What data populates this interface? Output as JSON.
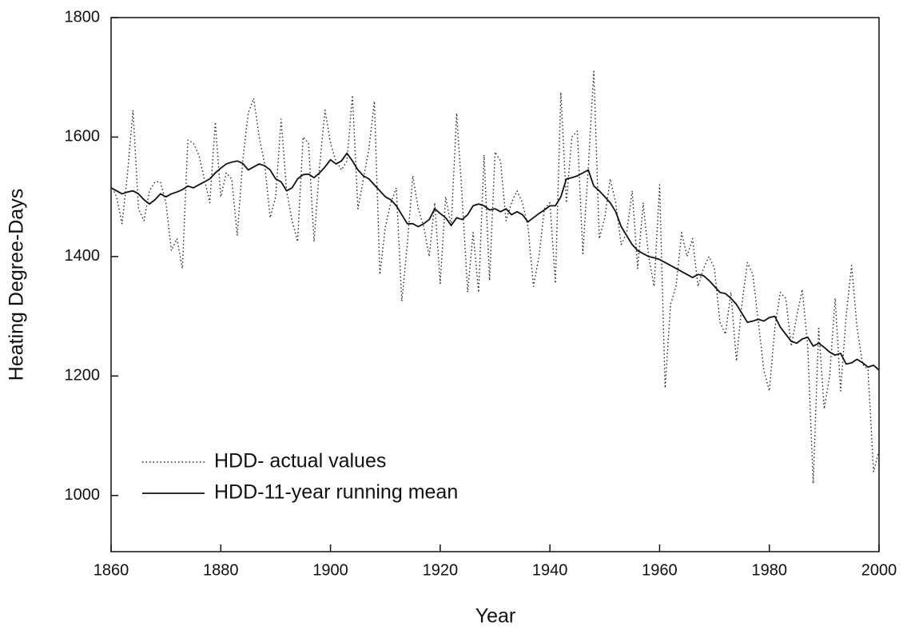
{
  "chart_data": {
    "type": "line",
    "xlabel": "Year",
    "ylabel": "Heating Degree-Days",
    "xlim": [
      1860,
      2000
    ],
    "xticks": [
      1860,
      1880,
      1900,
      1920,
      1940,
      1960,
      1980,
      2000
    ],
    "ylim": [
      906,
      1800
    ],
    "yticks": [
      1000,
      1200,
      1400,
      1600,
      1800
    ],
    "grid": false,
    "legend": "lower left",
    "x": [
      1860,
      1861,
      1862,
      1863,
      1864,
      1865,
      1866,
      1867,
      1868,
      1869,
      1870,
      1871,
      1872,
      1873,
      1874,
      1875,
      1876,
      1877,
      1878,
      1879,
      1880,
      1881,
      1882,
      1883,
      1884,
      1885,
      1886,
      1887,
      1888,
      1889,
      1890,
      1891,
      1892,
      1893,
      1894,
      1895,
      1896,
      1897,
      1898,
      1899,
      1900,
      1901,
      1902,
      1903,
      1904,
      1905,
      1906,
      1907,
      1908,
      1909,
      1910,
      1911,
      1912,
      1913,
      1914,
      1915,
      1916,
      1917,
      1918,
      1919,
      1920,
      1921,
      1922,
      1923,
      1924,
      1925,
      1926,
      1927,
      1928,
      1929,
      1930,
      1931,
      1932,
      1933,
      1934,
      1935,
      1936,
      1937,
      1938,
      1939,
      1940,
      1941,
      1942,
      1943,
      1944,
      1945,
      1946,
      1947,
      1948,
      1949,
      1950,
      1951,
      1952,
      1953,
      1954,
      1955,
      1956,
      1957,
      1958,
      1959,
      1960,
      1961,
      1962,
      1963,
      1964,
      1965,
      1966,
      1967,
      1968,
      1969,
      1970,
      1971,
      1972,
      1973,
      1974,
      1975,
      1976,
      1977,
      1978,
      1979,
      1980,
      1981,
      1982,
      1983,
      1984,
      1985,
      1986,
      1987,
      1988,
      1989,
      1990,
      1991,
      1992,
      1993,
      1994,
      1995,
      1996,
      1997,
      1998,
      1999,
      2000
    ],
    "series": [
      {
        "name": "HDD- actual values",
        "color": "#222222",
        "style": "dotted",
        "values": [
          1520,
          1500,
          1455,
          1540,
          1645,
          1480,
          1460,
          1510,
          1525,
          1525,
          1490,
          1410,
          1430,
          1380,
          1595,
          1590,
          1570,
          1530,
          1490,
          1625,
          1500,
          1540,
          1530,
          1435,
          1560,
          1640,
          1665,
          1600,
          1555,
          1465,
          1500,
          1630,
          1510,
          1460,
          1425,
          1600,
          1590,
          1425,
          1550,
          1645,
          1590,
          1560,
          1545,
          1560,
          1670,
          1480,
          1530,
          1580,
          1660,
          1370,
          1450,
          1490,
          1515,
          1325,
          1420,
          1535,
          1480,
          1450,
          1400,
          1490,
          1355,
          1500,
          1450,
          1640,
          1500,
          1340,
          1440,
          1340,
          1570,
          1360,
          1575,
          1560,
          1460,
          1490,
          1510,
          1490,
          1450,
          1350,
          1400,
          1480,
          1490,
          1355,
          1675,
          1490,
          1600,
          1610,
          1405,
          1550,
          1710,
          1430,
          1465,
          1530,
          1490,
          1420,
          1440,
          1510,
          1380,
          1490,
          1400,
          1350,
          1520,
          1180,
          1320,
          1350,
          1440,
          1400,
          1430,
          1350,
          1380,
          1400,
          1380,
          1290,
          1270,
          1340,
          1225,
          1320,
          1390,
          1370,
          1290,
          1210,
          1175,
          1280,
          1340,
          1330,
          1250,
          1300,
          1345,
          1250,
          1020,
          1280,
          1145,
          1200,
          1330,
          1175,
          1300,
          1385,
          1280,
          1220,
          1210,
          1040,
          1075
        ]
      },
      {
        "name": "HDD-11-year running mean",
        "color": "#111111",
        "style": "solid",
        "values": [
          1515,
          1510,
          1505,
          1508,
          1510,
          1505,
          1495,
          1488,
          1495,
          1505,
          1500,
          1505,
          1508,
          1512,
          1518,
          1515,
          1520,
          1525,
          1530,
          1540,
          1548,
          1555,
          1558,
          1560,
          1556,
          1545,
          1550,
          1555,
          1552,
          1545,
          1530,
          1525,
          1510,
          1515,
          1530,
          1537,
          1538,
          1532,
          1540,
          1550,
          1562,
          1555,
          1560,
          1573,
          1560,
          1545,
          1535,
          1530,
          1520,
          1510,
          1500,
          1495,
          1485,
          1470,
          1455,
          1455,
          1450,
          1455,
          1462,
          1480,
          1472,
          1465,
          1452,
          1465,
          1462,
          1470,
          1485,
          1488,
          1485,
          1478,
          1480,
          1475,
          1480,
          1470,
          1475,
          1470,
          1458,
          1465,
          1472,
          1478,
          1485,
          1485,
          1500,
          1530,
          1532,
          1535,
          1540,
          1545,
          1518,
          1510,
          1500,
          1490,
          1475,
          1450,
          1435,
          1420,
          1410,
          1405,
          1400,
          1398,
          1395,
          1390,
          1385,
          1380,
          1375,
          1370,
          1365,
          1370,
          1368,
          1360,
          1350,
          1340,
          1338,
          1330,
          1320,
          1305,
          1290,
          1292,
          1295,
          1292,
          1298,
          1300,
          1282,
          1270,
          1258,
          1255,
          1262,
          1265,
          1250,
          1255,
          1248,
          1240,
          1235,
          1238,
          1220,
          1222,
          1228,
          1222,
          1215,
          1218,
          1210
        ]
      }
    ]
  }
}
